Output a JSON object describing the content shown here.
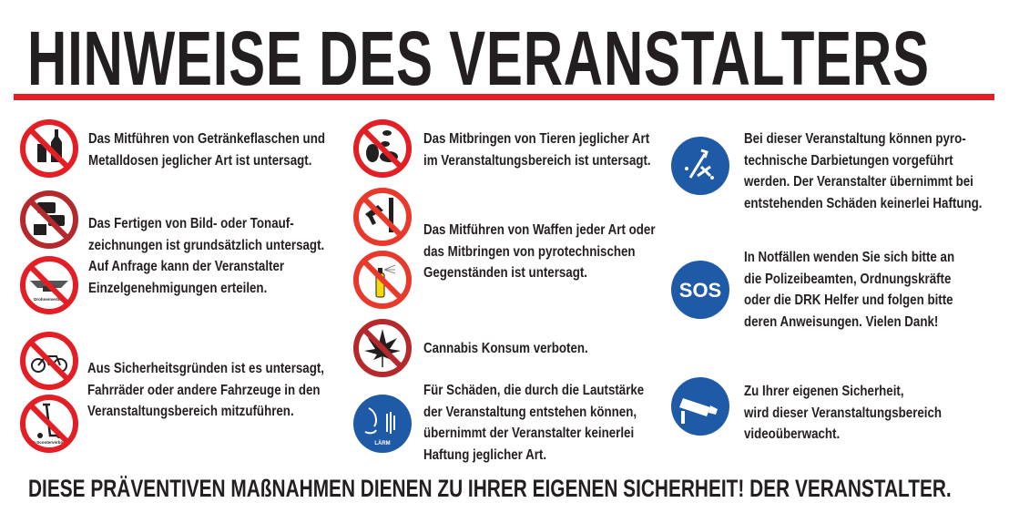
{
  "title": "HINWEISE DES VERANSTALTERS",
  "colors": {
    "accent_red": "#e31e24",
    "sign_blue": "#1f5aa6",
    "text": "#231f20"
  },
  "left_column": [
    {
      "icon": "no-bottles-cans-icon",
      "lines": [
        "Das Mitführen von Getränkeflaschen und",
        "Metalldosen jeglicher Art ist untersagt."
      ]
    },
    {
      "icon": "no-camera-recording-icon",
      "icon2": "no-drone-icon",
      "icon2_label": "Drohnenverbot!",
      "lines": [
        "Das Fertigen von Bild- oder Tonauf-",
        "zeichnungen ist grundsätzlich untersagt.",
        "Auf Anfrage kann der Veranstalter",
        "Einzelgenehmigungen erteilen."
      ]
    },
    {
      "icon": "no-bicycle-icon",
      "icon2": "no-escooter-icon",
      "icon2_label": "E-Scooterverbot!",
      "lines": [
        "Aus Sicherheitsgründen ist es untersagt,",
        "Fahrräder oder andere Fahrzeuge in den",
        "Veranstaltungsbereich mitzuführen."
      ]
    }
  ],
  "middle_column": [
    {
      "icon": "no-animals-icon",
      "lines": [
        "Das Mitbringen von Tieren jeglicher Art",
        "im Veranstaltungsbereich ist untersagt."
      ]
    },
    {
      "icon": "no-weapons-icon",
      "icon2": "no-spray-icon",
      "lines": [
        "Das Mitführen von Waffen jeder Art oder",
        "das Mitbringen von pyrotechnischen",
        "Gegenständen ist untersagt."
      ]
    },
    {
      "icon": "no-cannabis-icon",
      "lines": [
        "Cannabis Konsum verboten."
      ]
    },
    {
      "icon": "noise-icon",
      "icon_label": "LÄRM",
      "lines": [
        "Für Schäden, die durch die Lautstärke",
        "der Veranstaltung entstehen können,",
        "übernimmt der Veranstalter keinerlei",
        "Haftung jeglicher Art."
      ]
    }
  ],
  "right_column": [
    {
      "icon": "pyrotechnics-icon",
      "lines": [
        "Bei dieser Veranstaltung können pyro-",
        "technische Darbietungen vorgeführt",
        "werden. Der Veranstalter übernimmt bei",
        "entstehenden Schäden keinerlei Haftung."
      ]
    },
    {
      "icon": "sos-icon",
      "icon_label": "SOS",
      "lines": [
        "In Notfällen wenden Sie sich bitte an",
        "die Polizeibeamten, Ordnungskräfte",
        "oder die DRK Helfer und folgen bitte",
        "deren Anweisungen. Vielen Dank!"
      ]
    },
    {
      "icon": "video-surveillance-icon",
      "lines": [
        "Zu Ihrer eigenen Sicherheit,",
        "wird dieser Veranstaltungsbereich",
        "videoüberwacht."
      ]
    }
  ],
  "footer": "DIESE PRÄVENTIVEN MAßNAHMEN DIENEN ZU IHRER EIGENEN SICHERHEIT! DER VERANSTALTER."
}
